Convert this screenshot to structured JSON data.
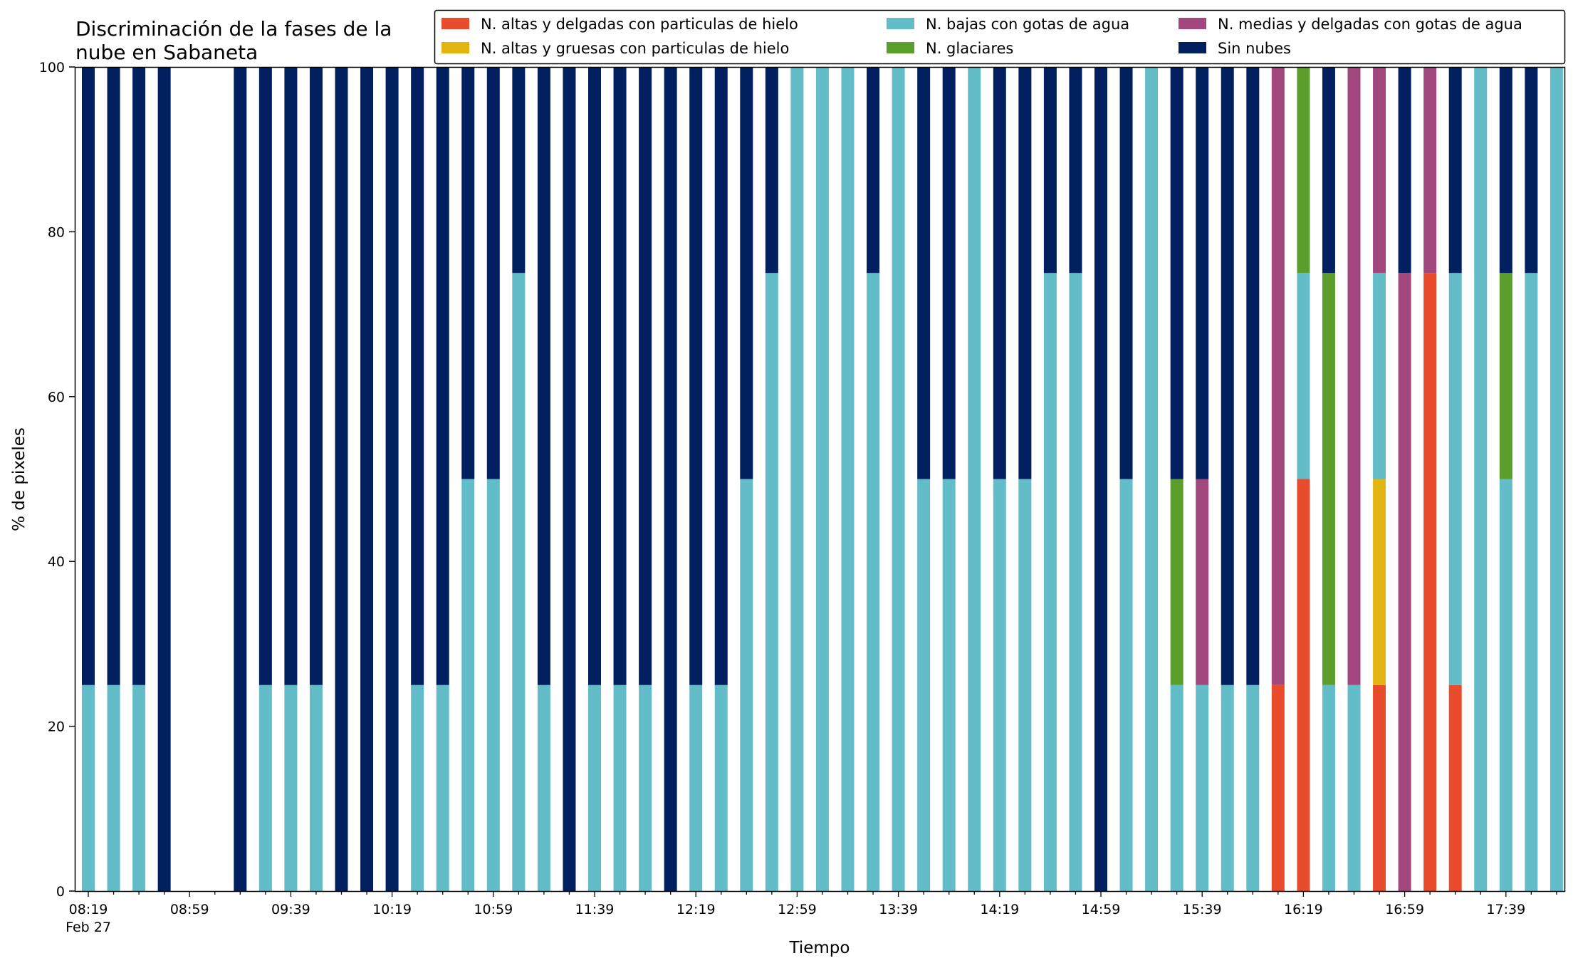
{
  "chart_data": {
    "type": "bar",
    "stacked": true,
    "title_lines": [
      "Discriminación de la fases de la",
      "nube en Sabaneta"
    ],
    "xlabel": "Tiempo",
    "ylabel": "% de pixeles",
    "ylim": [
      0,
      100
    ],
    "y_ticks": [
      0,
      20,
      40,
      60,
      80,
      100
    ],
    "x_tick_labels": [
      "08:19",
      "08:59",
      "09:39",
      "10:19",
      "10:59",
      "11:39",
      "12:19",
      "12:59",
      "13:39",
      "14:19",
      "14:59",
      "15:39",
      "16:19",
      "16:59",
      "17:39"
    ],
    "x_sub_label": "Feb 27",
    "grid": false,
    "legend_position": "top-right",
    "colors": {
      "altas_delgadas": "#e94b2d",
      "altas_gruesas": "#e2b514",
      "bajas": "#63bdc8",
      "glaciares": "#5b9e2b",
      "medias": "#a2477d",
      "sin_nubes": "#002060"
    },
    "legend": [
      {
        "key": "altas_delgadas",
        "label": "N. altas y delgadas con particulas de hielo"
      },
      {
        "key": "altas_gruesas",
        "label": "N. altas y gruesas con particulas de hielo"
      },
      {
        "key": "bajas",
        "label": "N. bajas con gotas de agua"
      },
      {
        "key": "glaciares",
        "label": "N. glaciares"
      },
      {
        "key": "medias",
        "label": "N. medias y delgadas con gotas de agua"
      },
      {
        "key": "sin_nubes",
        "label": "Sin nubes"
      }
    ],
    "stack_order": [
      "altas_delgadas",
      "altas_gruesas",
      "bajas",
      "glaciares",
      "medias",
      "sin_nubes"
    ],
    "bars": [
      {
        "bajas": 25,
        "sin_nubes": 75
      },
      {
        "bajas": 25,
        "sin_nubes": 75
      },
      {
        "bajas": 25,
        "sin_nubes": 75
      },
      {
        "sin_nubes": 100
      },
      {},
      {},
      {
        "sin_nubes": 100
      },
      {
        "bajas": 25,
        "sin_nubes": 75
      },
      {
        "bajas": 25,
        "sin_nubes": 75
      },
      {
        "bajas": 25,
        "sin_nubes": 75
      },
      {
        "sin_nubes": 100
      },
      {
        "sin_nubes": 100
      },
      {
        "sin_nubes": 100
      },
      {
        "bajas": 25,
        "sin_nubes": 75
      },
      {
        "bajas": 25,
        "sin_nubes": 75
      },
      {
        "bajas": 50,
        "sin_nubes": 50
      },
      {
        "bajas": 50,
        "sin_nubes": 50
      },
      {
        "bajas": 75,
        "sin_nubes": 25
      },
      {
        "bajas": 25,
        "sin_nubes": 75
      },
      {
        "sin_nubes": 100
      },
      {
        "bajas": 25,
        "sin_nubes": 75
      },
      {
        "bajas": 25,
        "sin_nubes": 75
      },
      {
        "bajas": 25,
        "sin_nubes": 75
      },
      {
        "sin_nubes": 100
      },
      {
        "bajas": 25,
        "sin_nubes": 75
      },
      {
        "bajas": 25,
        "sin_nubes": 75
      },
      {
        "bajas": 50,
        "sin_nubes": 50
      },
      {
        "bajas": 75,
        "sin_nubes": 25
      },
      {
        "bajas": 100
      },
      {
        "bajas": 100
      },
      {
        "bajas": 100
      },
      {
        "bajas": 75,
        "sin_nubes": 25
      },
      {
        "bajas": 100
      },
      {
        "bajas": 50,
        "sin_nubes": 50
      },
      {
        "bajas": 50,
        "sin_nubes": 50
      },
      {
        "bajas": 100
      },
      {
        "bajas": 50,
        "sin_nubes": 50
      },
      {
        "bajas": 50,
        "sin_nubes": 50
      },
      {
        "bajas": 75,
        "sin_nubes": 25
      },
      {
        "bajas": 75,
        "sin_nubes": 25
      },
      {
        "sin_nubes": 100
      },
      {
        "bajas": 50,
        "sin_nubes": 50
      },
      {
        "bajas": 100
      },
      {
        "bajas": 25,
        "glaciares": 25,
        "sin_nubes": 50
      },
      {
        "bajas": 25,
        "medias": 25,
        "sin_nubes": 50
      },
      {
        "bajas": 25,
        "sin_nubes": 75
      },
      {
        "bajas": 25,
        "sin_nubes": 75
      },
      {
        "altas_delgadas": 25,
        "medias": 75
      },
      {
        "altas_delgadas": 50,
        "bajas": 25,
        "glaciares": 25
      },
      {
        "bajas": 25,
        "glaciares": 50,
        "sin_nubes": 25
      },
      {
        "bajas": 25,
        "medias": 75
      },
      {
        "altas_delgadas": 25,
        "altas_gruesas": 25,
        "bajas": 25,
        "medias": 25
      },
      {
        "medias": 75,
        "sin_nubes": 25
      },
      {
        "altas_delgadas": 75,
        "medias": 25
      },
      {
        "altas_delgadas": 25,
        "bajas": 50,
        "sin_nubes": 25
      },
      {
        "bajas": 100
      },
      {
        "bajas": 50,
        "glaciares": 25,
        "sin_nubes": 25
      },
      {
        "bajas": 75,
        "sin_nubes": 25
      },
      {
        "bajas": 100
      }
    ]
  }
}
